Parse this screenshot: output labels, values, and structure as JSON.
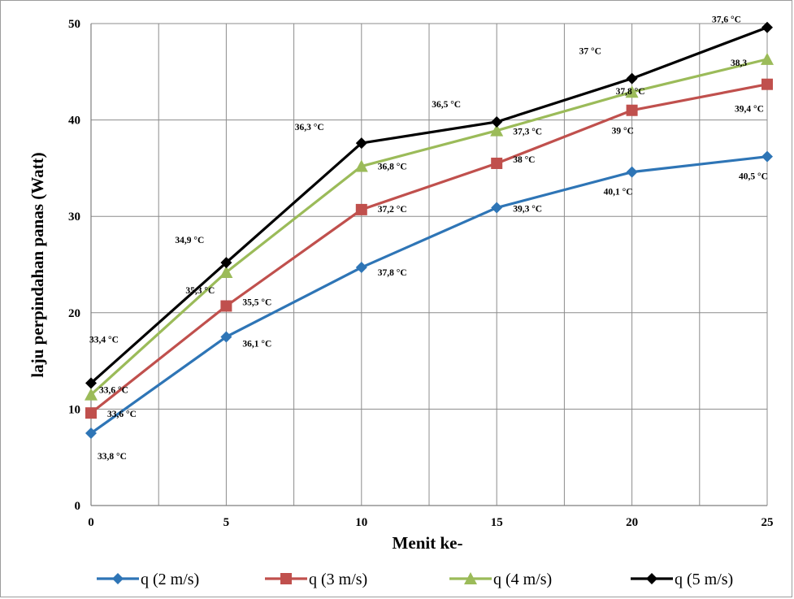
{
  "chart_data": {
    "type": "line",
    "title": "",
    "xlabel": "Menit ke-",
    "ylabel": "laju perpindahan panas (Watt)",
    "x": [
      0,
      5,
      10,
      15,
      20,
      25
    ],
    "xlim": [
      0,
      25
    ],
    "ylim": [
      0,
      50
    ],
    "x_ticks": [
      "0",
      "5",
      "10",
      "15",
      "20",
      "25"
    ],
    "y_ticks": [
      "0",
      "10",
      "20",
      "30",
      "40",
      "50"
    ],
    "grid": true,
    "legend_position": "bottom",
    "series": [
      {
        "name": "q (2 m/s)",
        "color": "#2e75b6",
        "marker": "diamond",
        "values": [
          7.5,
          17.5,
          24.7,
          30.9,
          34.6,
          36.2
        ],
        "labels": [
          "33,8 °C",
          "36,1 °C",
          "37,8 °C",
          "39,3 °C",
          "40,1 °C",
          "40,5 °C"
        ]
      },
      {
        "name": "q (3 m/s)",
        "color": "#c0504d",
        "marker": "square",
        "values": [
          9.6,
          20.7,
          30.7,
          35.5,
          41.0,
          43.7
        ],
        "labels": [
          "33,6 °C",
          "35,5 °C",
          "37,2 °C",
          "38 °C",
          "39 °C",
          "39,4 °C"
        ]
      },
      {
        "name": "q (4 m/s)",
        "color": "#9bbb59",
        "marker": "triangle",
        "values": [
          11.5,
          24.2,
          35.2,
          38.9,
          42.9,
          46.3
        ],
        "labels": [
          "33,6 °C",
          "35,3 °C",
          "36,8 °C",
          "37,3 °C",
          "37,8 °C",
          "38,3"
        ]
      },
      {
        "name": "q (5 m/s)",
        "color": "#000000",
        "marker": "diamond",
        "values": [
          12.7,
          25.2,
          37.6,
          39.8,
          44.3,
          49.6
        ],
        "labels": [
          "33,4 °C",
          "34,9 °C",
          "36,3 °C",
          "36,5 °C",
          "37 °C",
          "37,6 °C"
        ]
      }
    ]
  }
}
